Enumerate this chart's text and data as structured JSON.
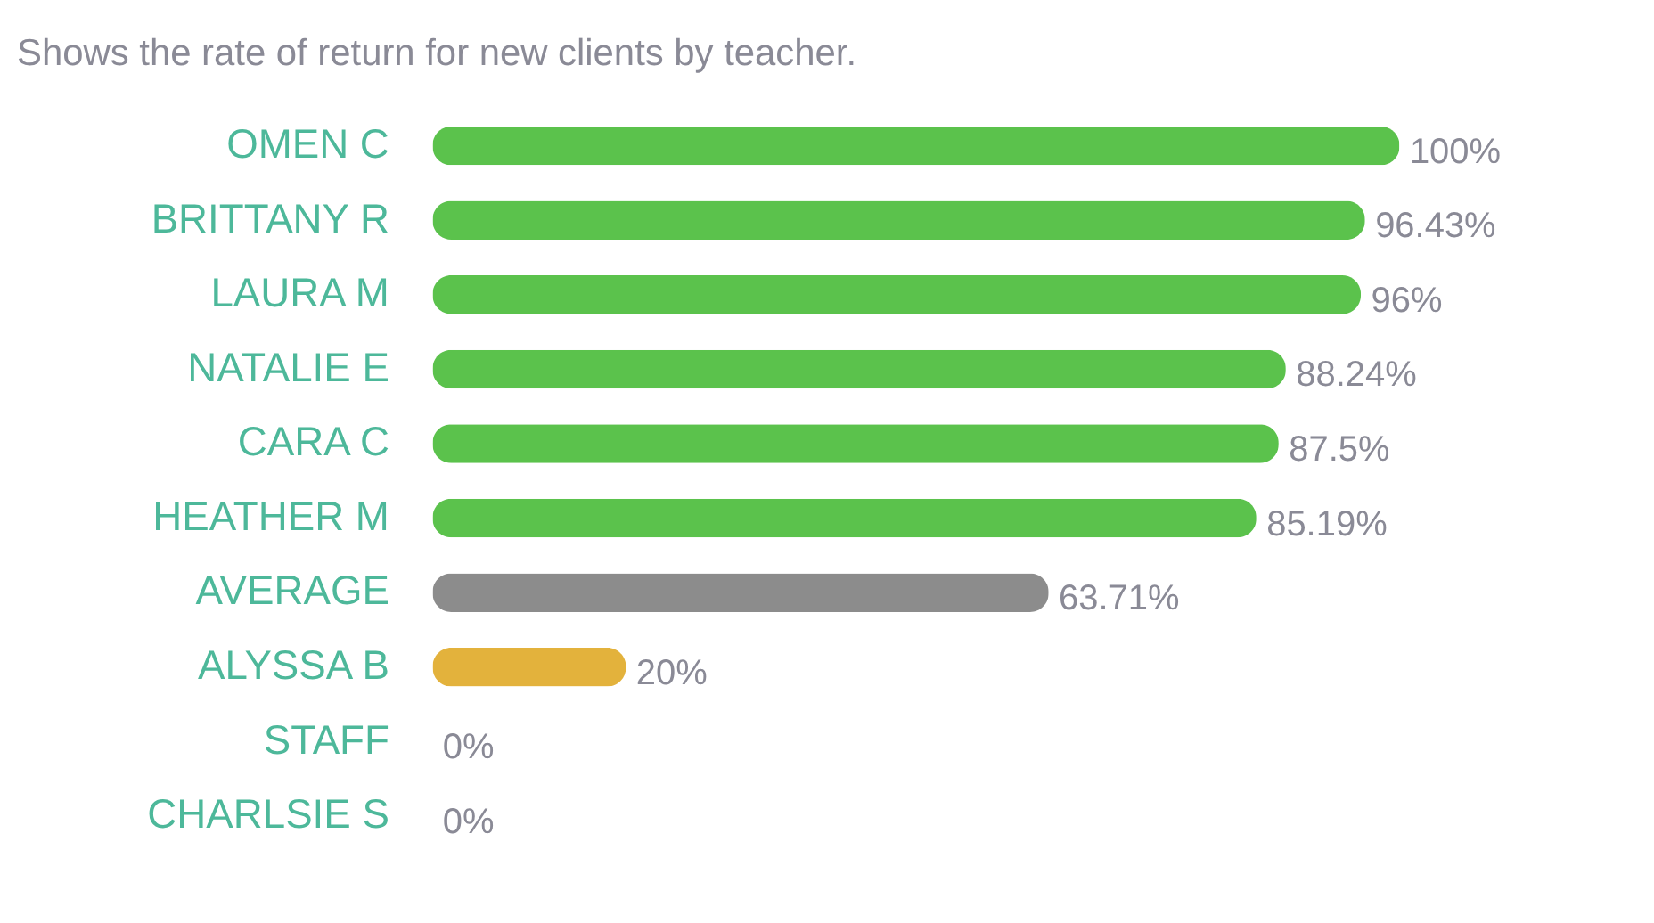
{
  "chart_data": {
    "type": "bar",
    "orientation": "horizontal",
    "title": "Shows the rate of return for new clients by teacher.",
    "categories": [
      "OMEN C",
      "BRITTANY R",
      "LAURA M",
      "NATALIE E",
      "CARA C",
      "HEATHER M",
      "AVERAGE",
      "ALYSSA B",
      "STAFF",
      "CHARLSIE S"
    ],
    "values": [
      100,
      96.43,
      96,
      88.24,
      87.5,
      85.19,
      63.71,
      20,
      0,
      0
    ],
    "colors": [
      "#5bc24c",
      "#5bc24c",
      "#5bc24c",
      "#5bc24c",
      "#5bc24c",
      "#5bc24c",
      "#8c8c8c",
      "#e3b23c",
      "#5bc24c",
      "#5bc24c"
    ],
    "value_labels": [
      "100%",
      "96.43%",
      "96%",
      "88.24%",
      "87.5%",
      "85.19%",
      "63.71%",
      "20%",
      "0%",
      "0%"
    ],
    "xlim": [
      0,
      100
    ],
    "tick_labels": "y",
    "grid": false
  }
}
